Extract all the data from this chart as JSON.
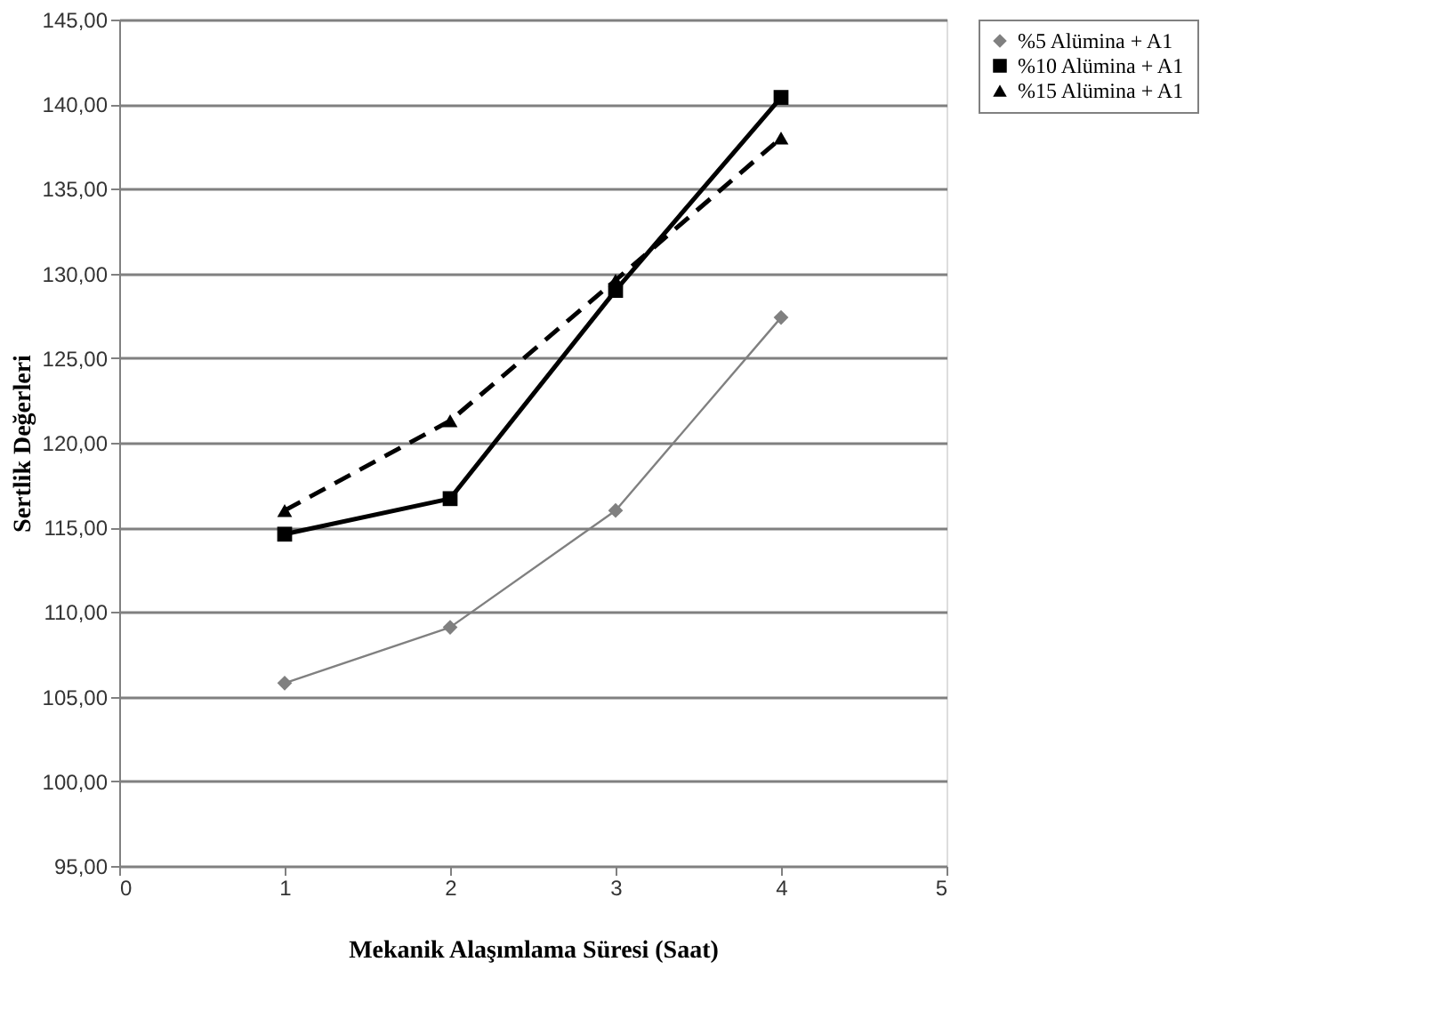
{
  "chart_data": {
    "type": "line",
    "xlabel": "Mekanik Alaşımlama Süresi (Saat)",
    "ylabel": "Sertlik Değerleri",
    "x": [
      1,
      2,
      3,
      4
    ],
    "series": [
      {
        "name": "%5 Alümina + A1",
        "color": "#808080",
        "values": [
          105.8,
          109.1,
          116.0,
          127.4
        ],
        "marker": "diamond",
        "line_style": "solid"
      },
      {
        "name": "%10 Alümina + A1",
        "color": "#000000",
        "values": [
          114.6,
          116.7,
          129.0,
          140.4
        ],
        "marker": "square",
        "line_style": "solid"
      },
      {
        "name": "%15 Alümina + A1",
        "color": "#000000",
        "values": [
          116.0,
          121.3,
          129.6,
          138.0
        ],
        "marker": "triangle",
        "line_style": "dashed"
      }
    ],
    "xlim": [
      0,
      5
    ],
    "xticks": [
      0,
      1,
      2,
      3,
      4,
      5
    ],
    "ylim": [
      95,
      145
    ],
    "yticks": [
      {
        "value": 95,
        "label": "95,00"
      },
      {
        "value": 100,
        "label": "100,00"
      },
      {
        "value": 105,
        "label": "105,00"
      },
      {
        "value": 110,
        "label": "110,00"
      },
      {
        "value": 115,
        "label": "115,00"
      },
      {
        "value": 120,
        "label": "120,00"
      },
      {
        "value": 125,
        "label": "125,00"
      },
      {
        "value": 130,
        "label": "130,00"
      },
      {
        "value": 135,
        "label": "135,00"
      },
      {
        "value": 140,
        "label": "140,00"
      },
      {
        "value": 145,
        "label": "145,00"
      }
    ],
    "grid": "y",
    "legend": "right"
  }
}
